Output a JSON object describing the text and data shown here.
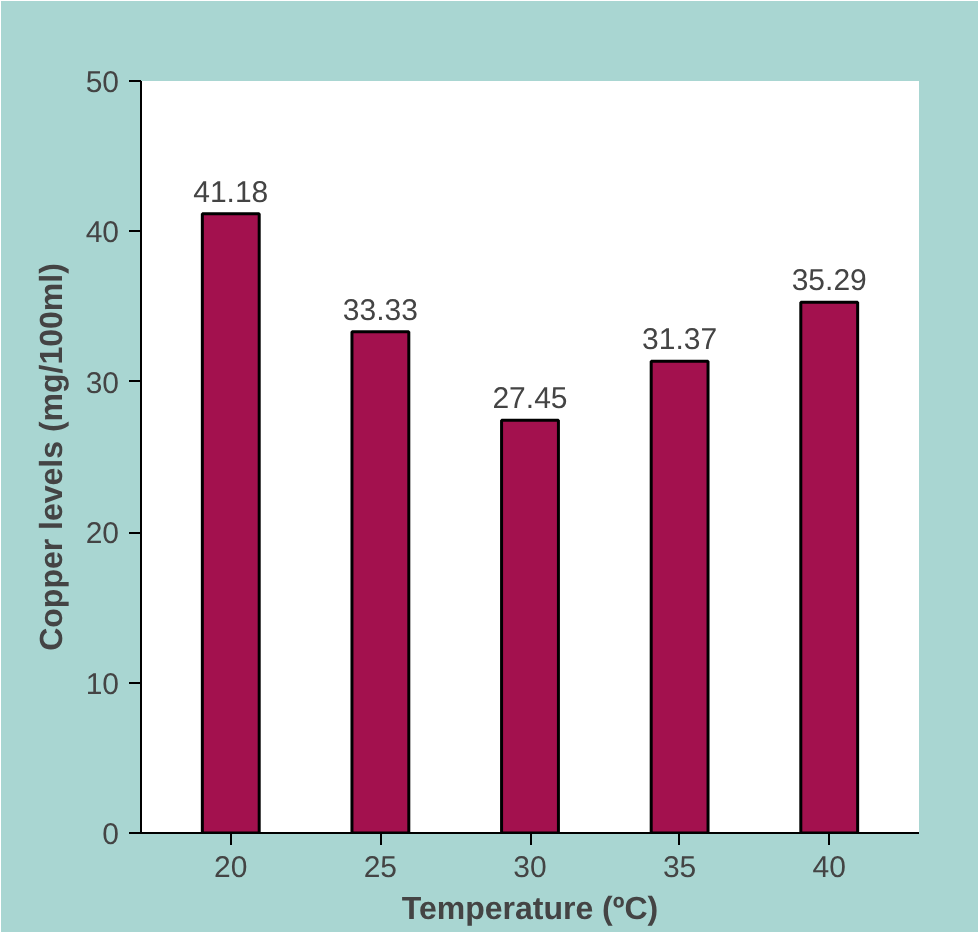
{
  "chart_data": {
    "type": "bar",
    "xlabel": "Temperature (ºC)",
    "ylabel": "Copper levels (mg/100ml)",
    "categories": [
      "20",
      "25",
      "30",
      "35",
      "40"
    ],
    "values": [
      41.18,
      33.33,
      27.45,
      31.37,
      35.29
    ],
    "color": "#a3114e",
    "ylim": [
      0,
      50
    ],
    "yticks": [
      0,
      10,
      20,
      30,
      40,
      50
    ],
    "data_labels": true,
    "grid": false
  }
}
